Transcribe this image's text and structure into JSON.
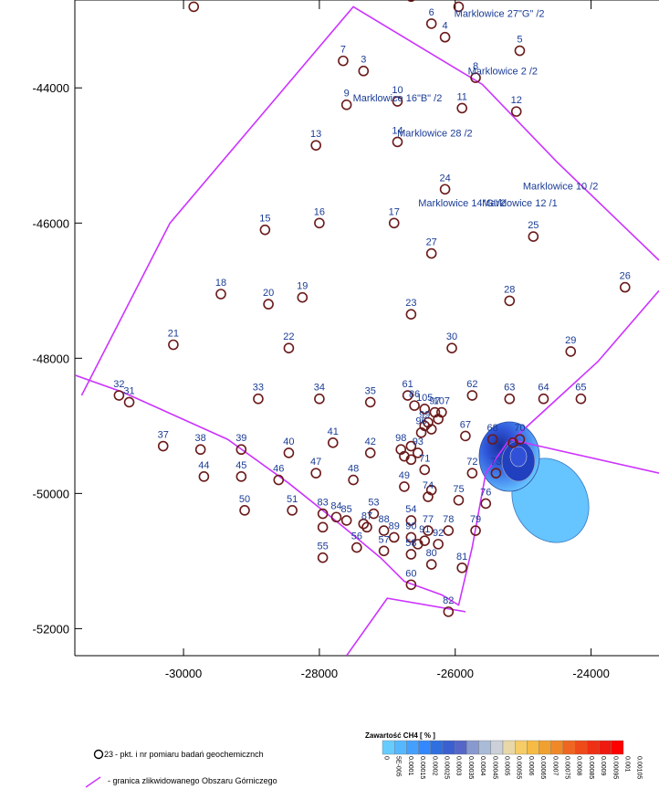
{
  "chart_data": {
    "type": "scatter",
    "title": "",
    "xlabel": "",
    "ylabel": "",
    "xlim": [
      -31600,
      -23000
    ],
    "ylim": [
      -52400,
      -42700
    ],
    "x_ticks": [
      -30000,
      -28000,
      -26000,
      -24000
    ],
    "y_ticks": [
      -44000,
      -46000,
      -48000,
      -50000,
      -52000
    ],
    "x_tick_labels": [
      "-30000",
      "-28000",
      "-26000",
      "-24000"
    ],
    "y_tick_labels": [
      "-44000",
      "-46000",
      "-48000",
      "-50000",
      "-52000"
    ],
    "grid": false,
    "points": [
      {
        "id": "3",
        "x": -27350,
        "y": -43750
      },
      {
        "id": "4",
        "x": -26150,
        "y": -43250
      },
      {
        "id": "5",
        "x": -25050,
        "y": -43450
      },
      {
        "id": "6",
        "x": -26350,
        "y": -43050
      },
      {
        "id": "7",
        "x": -27650,
        "y": -43600
      },
      {
        "id": "8",
        "x": -25700,
        "y": -43850
      },
      {
        "id": "9",
        "x": -27600,
        "y": -44250
      },
      {
        "id": "10",
        "x": -26850,
        "y": -44200
      },
      {
        "id": "11",
        "x": -25900,
        "y": -44300
      },
      {
        "id": "12",
        "x": -25100,
        "y": -44350
      },
      {
        "id": "13",
        "x": -28050,
        "y": -44850
      },
      {
        "id": "14",
        "x": -26850,
        "y": -44800
      },
      {
        "id": "15",
        "x": -28800,
        "y": -46100
      },
      {
        "id": "16",
        "x": -28000,
        "y": -46000
      },
      {
        "id": "17",
        "x": -26900,
        "y": -46000
      },
      {
        "id": "18",
        "x": -29450,
        "y": -47050
      },
      {
        "id": "19",
        "x": -28250,
        "y": -47100
      },
      {
        "id": "20",
        "x": -28750,
        "y": -47200
      },
      {
        "id": "21",
        "x": -30150,
        "y": -47800
      },
      {
        "id": "22",
        "x": -28450,
        "y": -47850
      },
      {
        "id": "23",
        "x": -26650,
        "y": -47350
      },
      {
        "id": "24",
        "x": -26150,
        "y": -45500
      },
      {
        "id": "25",
        "x": -24850,
        "y": -46200
      },
      {
        "id": "26",
        "x": -23500,
        "y": -46950
      },
      {
        "id": "27",
        "x": -26350,
        "y": -46450
      },
      {
        "id": "28",
        "x": -25200,
        "y": -47150
      },
      {
        "id": "29",
        "x": -24300,
        "y": -47900
      },
      {
        "id": "30",
        "x": -26050,
        "y": -47850
      },
      {
        "id": "31",
        "x": -30800,
        "y": -48650
      },
      {
        "id": "32",
        "x": -30950,
        "y": -48550
      },
      {
        "id": "33",
        "x": -28900,
        "y": -48600
      },
      {
        "id": "34",
        "x": -28000,
        "y": -48600
      },
      {
        "id": "35",
        "x": -27250,
        "y": -48650
      },
      {
        "id": "37",
        "x": -30300,
        "y": -49300
      },
      {
        "id": "38",
        "x": -29750,
        "y": -49350
      },
      {
        "id": "39",
        "x": -29150,
        "y": -49350
      },
      {
        "id": "40",
        "x": -28450,
        "y": -49400
      },
      {
        "id": "41",
        "x": -27800,
        "y": -49250
      },
      {
        "id": "42",
        "x": -27250,
        "y": -49400
      },
      {
        "id": "44",
        "x": -29700,
        "y": -49750
      },
      {
        "id": "45",
        "x": -29150,
        "y": -49750
      },
      {
        "id": "46",
        "x": -28600,
        "y": -49800
      },
      {
        "id": "47",
        "x": -28050,
        "y": -49700
      },
      {
        "id": "48",
        "x": -27500,
        "y": -49800
      },
      {
        "id": "49",
        "x": -26750,
        "y": -49900
      },
      {
        "id": "50",
        "x": -29100,
        "y": -50250
      },
      {
        "id": "51",
        "x": -28400,
        "y": -50250
      },
      {
        "id": "53",
        "x": -27200,
        "y": -50300
      },
      {
        "id": "54",
        "x": -26650,
        "y": -50400
      },
      {
        "id": "55",
        "x": -27950,
        "y": -50950
      },
      {
        "id": "56",
        "x": -27450,
        "y": -50800
      },
      {
        "id": "57",
        "x": -27050,
        "y": -50850
      },
      {
        "id": "58",
        "x": -26650,
        "y": -50900
      },
      {
        "id": "60",
        "x": -26650,
        "y": -51350
      },
      {
        "id": "61",
        "x": -26700,
        "y": -48550
      },
      {
        "id": "62",
        "x": -25750,
        "y": -48550
      },
      {
        "id": "63",
        "x": -25200,
        "y": -48600
      },
      {
        "id": "64",
        "x": -24700,
        "y": -48600
      },
      {
        "id": "65",
        "x": -24150,
        "y": -48600
      },
      {
        "id": "67",
        "x": -25850,
        "y": -49150
      },
      {
        "id": "68",
        "x": -25450,
        "y": -49200
      },
      {
        "id": "70",
        "x": -25050,
        "y": -49200
      },
      {
        "id": "71",
        "x": -26450,
        "y": -49650
      },
      {
        "id": "72",
        "x": -25750,
        "y": -49700
      },
      {
        "id": "73",
        "x": -25400,
        "y": -49700
      },
      {
        "id": "74",
        "x": -26400,
        "y": -50050
      },
      {
        "id": "75",
        "x": -25950,
        "y": -50100
      },
      {
        "id": "76",
        "x": -25550,
        "y": -50150
      },
      {
        "id": "77",
        "x": -26400,
        "y": -50550
      },
      {
        "id": "78",
        "x": -26100,
        "y": -50550
      },
      {
        "id": "79",
        "x": -25700,
        "y": -50550
      },
      {
        "id": "80",
        "x": -26350,
        "y": -51050
      },
      {
        "id": "81",
        "x": -25900,
        "y": -51100
      },
      {
        "id": "82",
        "x": -26100,
        "y": -51750
      },
      {
        "id": "83",
        "x": -27950,
        "y": -50300
      },
      {
        "id": "84",
        "x": -27750,
        "y": -50350
      },
      {
        "id": "85",
        "x": -27600,
        "y": -50400
      },
      {
        "id": "86",
        "x": -26600,
        "y": -48700
      },
      {
        "id": "87",
        "x": -27300,
        "y": -50500
      },
      {
        "id": "88",
        "x": -27050,
        "y": -50550
      },
      {
        "id": "89",
        "x": -26900,
        "y": -50650
      },
      {
        "id": "90",
        "x": -26650,
        "y": -50650
      },
      {
        "id": "91",
        "x": -26450,
        "y": -50700
      },
      {
        "id": "92",
        "x": -26250,
        "y": -50750
      },
      {
        "id": "93",
        "x": -26550,
        "y": -49400
      },
      {
        "id": "96",
        "x": -26500,
        "y": -49100
      },
      {
        "id": "97",
        "x": -26300,
        "y": -48800
      },
      {
        "id": "98",
        "x": -26800,
        "y": -49350
      },
      {
        "id": "99",
        "x": -26450,
        "y": -49000
      },
      {
        "id": "105",
        "x": -26450,
        "y": -48750
      },
      {
        "id": "107",
        "x": -26200,
        "y": -48800
      }
    ],
    "extra_points": [
      {
        "x": -29850,
        "y": -42800
      },
      {
        "x": -26650,
        "y": -42650
      },
      {
        "x": -25950,
        "y": -42800
      },
      {
        "x": -27950,
        "y": -50500
      },
      {
        "x": -27350,
        "y": -50450
      },
      {
        "x": -26750,
        "y": -49450
      },
      {
        "x": -26650,
        "y": -49500
      },
      {
        "x": -26650,
        "y": -49300
      },
      {
        "x": -26400,
        "y": -48950
      },
      {
        "x": -26350,
        "y": -49050
      },
      {
        "x": -26250,
        "y": -48900
      },
      {
        "x": -26550,
        "y": -50750
      },
      {
        "x": -26350,
        "y": -49950
      },
      {
        "x": -25150,
        "y": -49250
      }
    ],
    "place_labels": [
      {
        "text": "Marklowice  27\"G\" /2",
        "x": -25350,
        "y": -42950
      },
      {
        "text": "Marklowice  2 /2",
        "x": -25300,
        "y": -43800
      },
      {
        "text": "Marklowice  16\"B\" /2",
        "x": -26850,
        "y": -44200
      },
      {
        "text": "Marklowice  28 /2",
        "x": -26300,
        "y": -44720
      },
      {
        "text": "Marklowice  14\"G\"/2",
        "x": -25900,
        "y": -45750
      },
      {
        "text": "Marklowice  12 /1",
        "x": -25050,
        "y": -45750
      },
      {
        "text": "Marklowice  10 /2",
        "x": -24450,
        "y": -45500
      }
    ],
    "boundary": [
      [
        -31600,
        -48250
      ],
      [
        -30900,
        -48500
      ],
      [
        -29350,
        -49200
      ],
      [
        -28450,
        -49850
      ],
      [
        -27700,
        -50450
      ],
      [
        -27100,
        -50950
      ],
      [
        -26750,
        -51300
      ],
      [
        -26200,
        -51500
      ],
      [
        -25950,
        -51650
      ],
      [
        -25750,
        -50800
      ],
      [
        -25550,
        -49700
      ],
      [
        -25200,
        -49200
      ],
      [
        -23000,
        -49700
      ]
    ],
    "boundary_upper": [
      [
        -31500,
        -48550
      ],
      [
        -30200,
        -46000
      ],
      [
        -27500,
        -42800
      ],
      [
        -25600,
        -43950
      ],
      [
        -24500,
        -45100
      ],
      [
        -23000,
        -46550
      ]
    ],
    "boundary_lower_branch": [
      [
        -27600,
        -52400
      ],
      [
        -27000,
        -51550
      ],
      [
        -25850,
        -51750
      ]
    ],
    "boundary_tail": [
      [
        -25150,
        -49200
      ],
      [
        -23900,
        -48050
      ],
      [
        -23000,
        -47000
      ]
    ],
    "legend": {
      "point_label_sample": "23",
      "point_text": " - pkt. i nr pomiaru badań geochemicznch",
      "line_text": " - granica zlikwidowanego Obszaru Górniczego"
    },
    "colorbar": {
      "title": "Zawartość CH4 [ % ]",
      "ticks": [
        "0",
        "5E-005",
        "0.0001",
        "0.00015",
        "0.0002",
        "0.00025",
        "0.0003",
        "0.00035",
        "0.0004",
        "0.00045",
        "0.0005",
        "0.00055",
        "0.0006",
        "0.00065",
        "0.0007",
        "0.00075",
        "0.0008",
        "0.00085",
        "0.0009",
        "0.00095",
        "0.001",
        "0.00105"
      ],
      "colors": [
        "#66ccff",
        "#55b8ff",
        "#44a0ff",
        "#3388ff",
        "#2f6fe0",
        "#3a5fd0",
        "#5566c8",
        "#8899d0",
        "#aabbd8",
        "#ccd0d8",
        "#e8d8a8",
        "#f5cc66",
        "#f5bb44",
        "#f0a030",
        "#f08828",
        "#ee6622",
        "#ee4a1a",
        "#ee3014",
        "#ee1a10",
        "#ff0000"
      ]
    },
    "plume_color": "#4a9ff5",
    "boundary_color": "#cc33ff",
    "point_color": "#6b1a1a"
  }
}
